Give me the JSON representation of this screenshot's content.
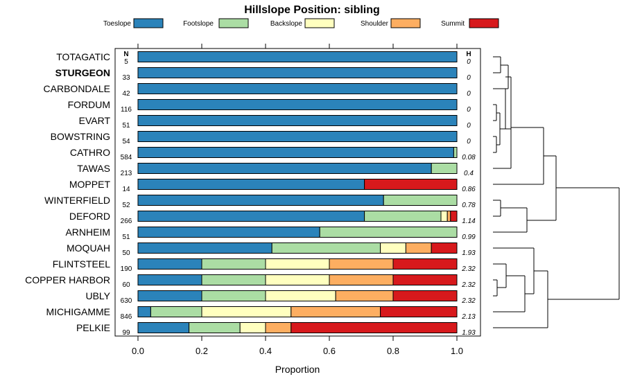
{
  "chart_data": {
    "type": "bar",
    "orientation": "horizontal",
    "stacked": true,
    "title": "Hillslope Position: sibling",
    "xlabel": "Proportion",
    "xlim": [
      0,
      1
    ],
    "x_ticks": [
      "0.0",
      "0.2",
      "0.4",
      "0.6",
      "0.8",
      "1.0"
    ],
    "n_header": "N",
    "h_header": "H",
    "highlighted_category": "STURGEON",
    "legend": [
      {
        "name": "Toeslope",
        "color": "#2b83ba"
      },
      {
        "name": "Footslope",
        "color": "#abdda4"
      },
      {
        "name": "Backslope",
        "color": "#ffffbf"
      },
      {
        "name": "Shoulder",
        "color": "#fdae61"
      },
      {
        "name": "Summit",
        "color": "#d7191c"
      }
    ],
    "rows": [
      {
        "name": "TOTAGATIC",
        "n": "5",
        "h": "0",
        "values": [
          1,
          0,
          0,
          0,
          0
        ]
      },
      {
        "name": "STURGEON",
        "n": "33",
        "h": "0",
        "values": [
          1,
          0,
          0,
          0,
          0
        ]
      },
      {
        "name": "CARBONDALE",
        "n": "42",
        "h": "0",
        "values": [
          1,
          0,
          0,
          0,
          0
        ]
      },
      {
        "name": "FORDUM",
        "n": "116",
        "h": "0",
        "values": [
          1,
          0,
          0,
          0,
          0
        ]
      },
      {
        "name": "EVART",
        "n": "51",
        "h": "0",
        "values": [
          1,
          0,
          0,
          0,
          0
        ]
      },
      {
        "name": "BOWSTRING",
        "n": "54",
        "h": "0",
        "values": [
          1,
          0,
          0,
          0,
          0
        ]
      },
      {
        "name": "CATHRO",
        "n": "584",
        "h": "0.08",
        "values": [
          0.99,
          0.01,
          0,
          0,
          0
        ]
      },
      {
        "name": "TAWAS",
        "n": "213",
        "h": "0.4",
        "values": [
          0.92,
          0.08,
          0,
          0,
          0
        ]
      },
      {
        "name": "MOPPET",
        "n": "14",
        "h": "0.86",
        "values": [
          0.71,
          0,
          0,
          0,
          0.29
        ]
      },
      {
        "name": "WINTERFIELD",
        "n": "52",
        "h": "0.78",
        "values": [
          0.77,
          0.23,
          0,
          0,
          0
        ]
      },
      {
        "name": "DEFORD",
        "n": "266",
        "h": "1.14",
        "values": [
          0.71,
          0.24,
          0.02,
          0.01,
          0.02
        ]
      },
      {
        "name": "ARNHEIM",
        "n": "51",
        "h": "0.99",
        "values": [
          0.57,
          0.43,
          0,
          0,
          0
        ]
      },
      {
        "name": "MOQUAH",
        "n": "50",
        "h": "1.93",
        "values": [
          0.42,
          0.34,
          0.08,
          0.08,
          0.08
        ]
      },
      {
        "name": "FLINTSTEEL",
        "n": "190",
        "h": "2.32",
        "values": [
          0.2,
          0.2,
          0.2,
          0.2,
          0.2
        ]
      },
      {
        "name": "COPPER HARBOR",
        "n": "60",
        "h": "2.32",
        "values": [
          0.2,
          0.2,
          0.2,
          0.2,
          0.2
        ]
      },
      {
        "name": "UBLY",
        "n": "630",
        "h": "2.32",
        "values": [
          0.2,
          0.2,
          0.22,
          0.18,
          0.2
        ]
      },
      {
        "name": "MICHIGAMME",
        "n": "846",
        "h": "2.13",
        "values": [
          0.04,
          0.16,
          0.28,
          0.28,
          0.24
        ]
      },
      {
        "name": "PELKIE",
        "n": "99",
        "h": "1.93",
        "values": [
          0.16,
          0.16,
          0.08,
          0.08,
          0.52
        ]
      }
    ]
  }
}
